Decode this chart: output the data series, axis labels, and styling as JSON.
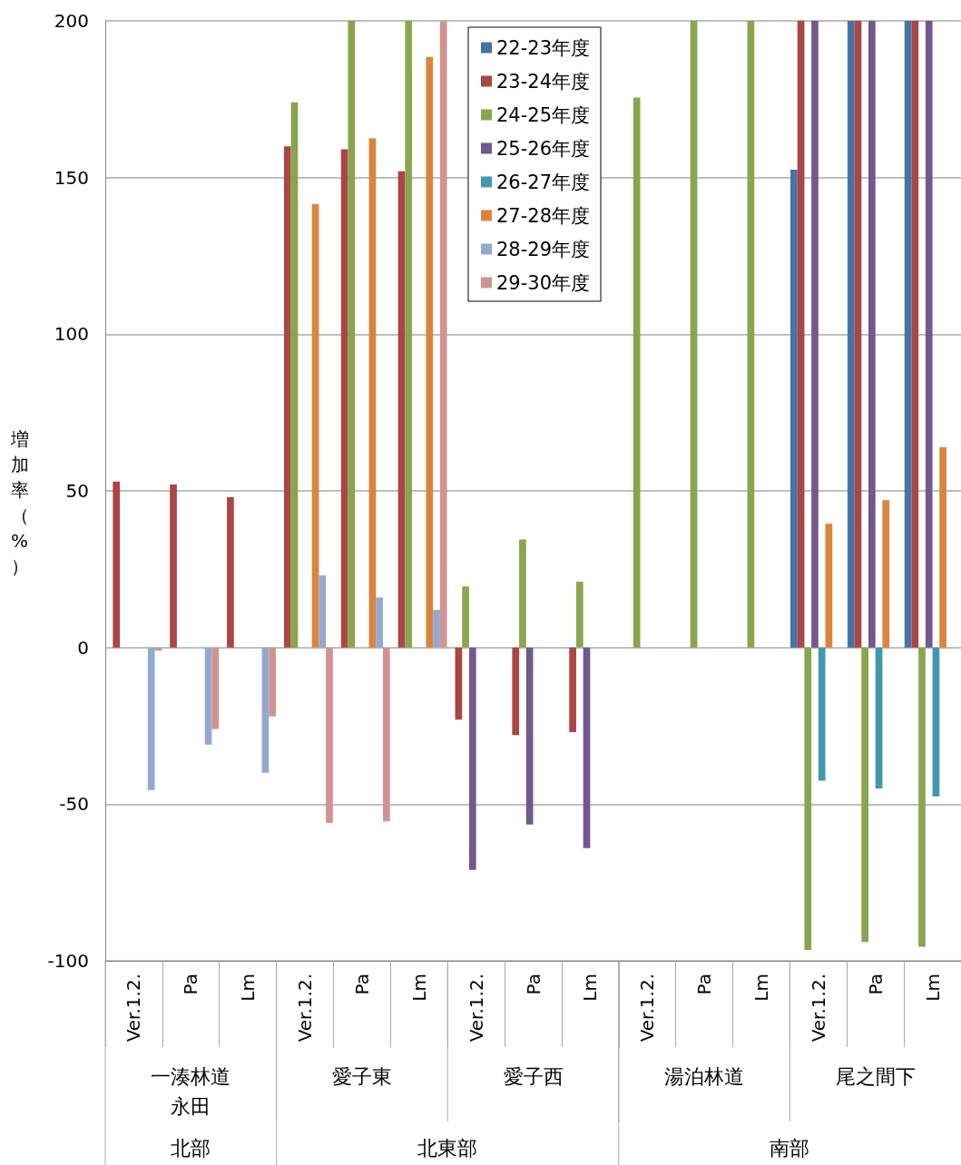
{
  "chart_data": {
    "type": "bar",
    "ylabel": "増加率（%）",
    "categories": [
      "Ver.1.2.",
      "Pa",
      "Lm",
      "Ver.1.2.",
      "Pa",
      "Lm",
      "Ver.1.2.",
      "Pa",
      "Lm",
      "Ver.1.2.",
      "Pa",
      "Lm",
      "Ver.1.2.",
      "Pa",
      "Lm"
    ],
    "annotations": [
      "一湊林道永田",
      "愛子東",
      "愛子西",
      "湯泊林道",
      "尾之間下",
      "北部",
      "北東部",
      "南部"
    ],
    "series": [
      {
        "name": "22-23年度",
        "color": "#4572a7",
        "values": [
          null,
          null,
          null,
          null,
          null,
          null,
          null,
          null,
          null,
          null,
          null,
          null,
          152.5,
          200,
          200
        ]
      },
      {
        "name": "23-24年度",
        "color": "#aa4643",
        "values": [
          53,
          52,
          48,
          160,
          159,
          152,
          -23,
          -28,
          -27,
          null,
          null,
          null,
          200,
          200,
          200
        ]
      },
      {
        "name": "24-25年度",
        "color": "#89a54e",
        "values": [
          null,
          null,
          null,
          174,
          200,
          200,
          19.5,
          34.5,
          21,
          175.5,
          200,
          200,
          -96.5,
          -94,
          -95.5
        ]
      },
      {
        "name": "25-26年度",
        "color": "#71588f",
        "values": [
          null,
          null,
          null,
          null,
          null,
          null,
          -71,
          -56.5,
          -64,
          null,
          null,
          null,
          200,
          200,
          200
        ]
      },
      {
        "name": "26-27年度",
        "color": "#4198af",
        "values": [
          null,
          null,
          null,
          null,
          null,
          null,
          null,
          null,
          null,
          null,
          null,
          null,
          -42.5,
          -45,
          -47.5
        ]
      },
      {
        "name": "27-28年度",
        "color": "#db843d",
        "values": [
          null,
          null,
          null,
          141.5,
          162.5,
          188.5,
          null,
          null,
          null,
          null,
          null,
          null,
          39.5,
          47,
          64
        ]
      },
      {
        "name": "28-29年度",
        "color": "#93a9cf",
        "values": [
          -45.5,
          -31,
          -40,
          23,
          16,
          12,
          null,
          null,
          null,
          null,
          null,
          null,
          null,
          null,
          null
        ]
      },
      {
        "name": "29-30年度",
        "color": "#d19392",
        "values": [
          -1,
          -26,
          -22,
          -56,
          -55.5,
          200,
          null,
          null,
          null,
          null,
          null,
          null,
          null,
          null,
          null
        ]
      }
    ],
    "ylim": [
      -100,
      200
    ],
    "yticks": [
      -100,
      -50,
      0,
      50,
      100,
      150,
      200
    ],
    "grid": "y",
    "legend": "top"
  }
}
